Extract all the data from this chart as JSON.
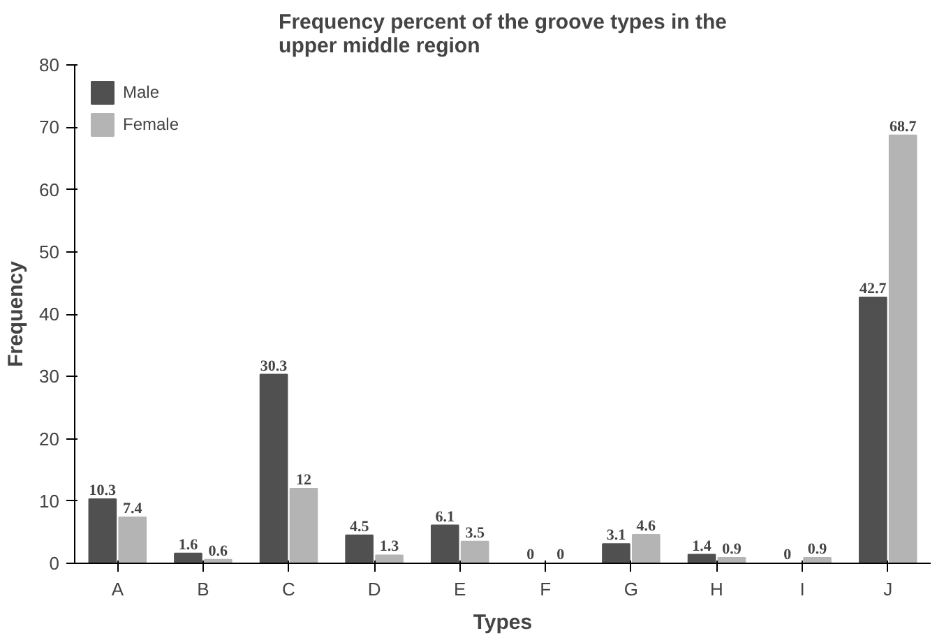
{
  "chart_data": {
    "type": "bar",
    "title": "Frequency percent of the groove types in the\nupper middle region",
    "xlabel": "Types",
    "ylabel": "Frequency",
    "categories": [
      "A",
      "B",
      "C",
      "D",
      "E",
      "F",
      "G",
      "H",
      "I",
      "J"
    ],
    "series": [
      {
        "name": "Male",
        "color": "#505050",
        "values": [
          10.3,
          1.6,
          30.3,
          4.5,
          6.1,
          0,
          3.1,
          1.4,
          0,
          42.7
        ]
      },
      {
        "name": "Female",
        "color": "#b4b4b4",
        "values": [
          7.4,
          0.6,
          12,
          1.3,
          3.5,
          0,
          4.6,
          0.9,
          0.9,
          68.7
        ]
      }
    ],
    "ylim": [
      0,
      80
    ],
    "yticks": [
      0,
      10,
      20,
      30,
      40,
      50,
      60,
      70,
      80
    ],
    "grid": false,
    "legend": "top left",
    "data_labels": true
  }
}
